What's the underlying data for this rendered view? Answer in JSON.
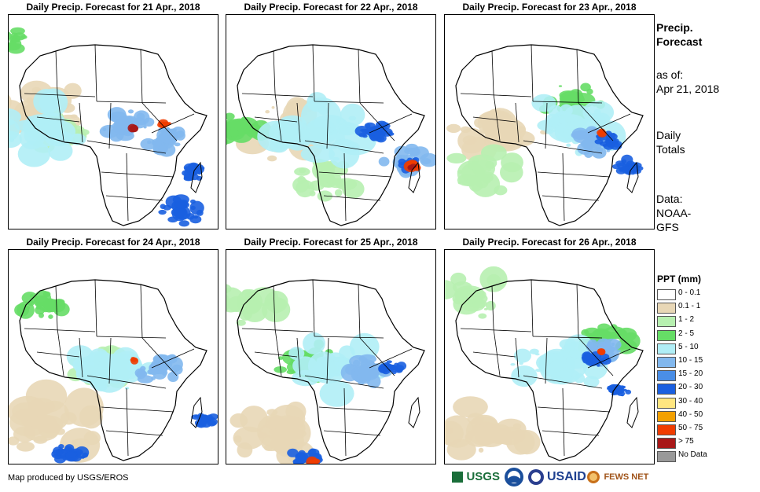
{
  "panels": [
    {
      "title": "Daily Precip. Forecast for 21 Apr., 2018"
    },
    {
      "title": "Daily Precip. Forecast for 22 Apr., 2018"
    },
    {
      "title": "Daily Precip. Forecast for 23 Apr., 2018"
    },
    {
      "title": "Daily Precip. Forecast for 24 Apr., 2018"
    },
    {
      "title": "Daily Precip. Forecast for 25 Apr., 2018"
    },
    {
      "title": "Daily Precip. Forecast for 26 Apr., 2018"
    }
  ],
  "sidebar": {
    "title_line1": "Precip.",
    "title_line2": "Forecast",
    "asof_label": "as of:",
    "asof_date": "Apr 21, 2018",
    "daily_line1": "Daily",
    "daily_line2": "Totals",
    "data_line1": "Data:",
    "data_line2": "NOAA-",
    "data_line3": "GFS"
  },
  "legend": {
    "title": "PPT (mm)",
    "items": [
      {
        "label": "0 - 0.1",
        "color": "#ffffff"
      },
      {
        "label": "0.1 - 1",
        "color": "#e8d7b6"
      },
      {
        "label": "1 - 2",
        "color": "#b7f0b0"
      },
      {
        "label": "2 - 5",
        "color": "#66dd66"
      },
      {
        "label": "5 - 10",
        "color": "#b0eef6"
      },
      {
        "label": "10 - 15",
        "color": "#82b8ee"
      },
      {
        "label": "15 - 20",
        "color": "#4a8ee6"
      },
      {
        "label": "20 - 30",
        "color": "#1a5fe0"
      },
      {
        "label": "30 - 40",
        "color": "#ffe680"
      },
      {
        "label": "40 - 50",
        "color": "#f2a000"
      },
      {
        "label": "50 - 75",
        "color": "#f03c00"
      },
      {
        "label": "> 75",
        "color": "#a81818"
      },
      {
        "label": "No Data",
        "color": "#999999"
      }
    ]
  },
  "footer": {
    "credit": "Map produced by USGS/EROS",
    "logo_usgs": "USGS",
    "logo_usaid": "USAID",
    "logo_fews": "FEWS NET"
  }
}
